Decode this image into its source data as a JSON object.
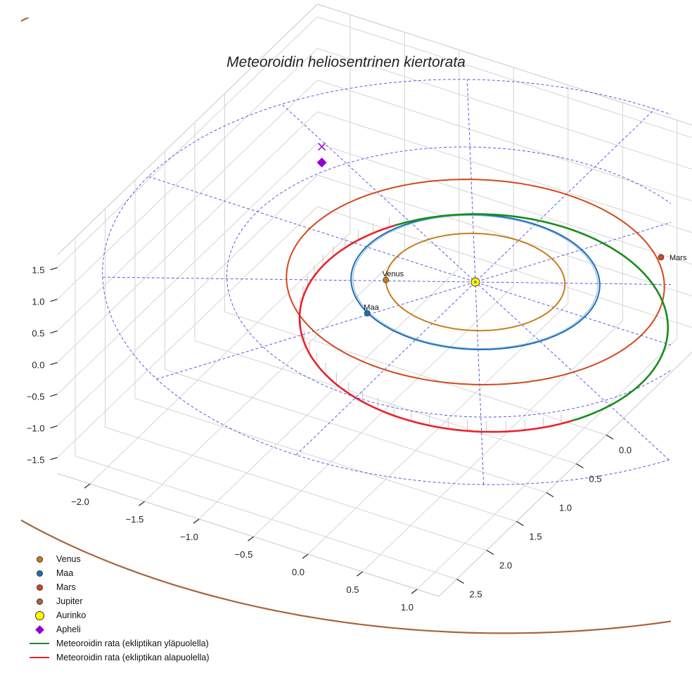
{
  "chart_data": {
    "type": "line",
    "title": "Meteoroidin heliosentrinen kiertorata",
    "xlabel": "",
    "ylabel": "",
    "zlabel": "",
    "x_ticks": [
      "−2.0",
      "−1.5",
      "−1.0",
      "−0.5",
      "0.0",
      "0.5",
      "1.0"
    ],
    "y_ticks": [
      "0.0",
      "0.5",
      "1.0",
      "1.5",
      "2.0",
      "2.5"
    ],
    "z_ticks": [
      "1.5",
      "1.0",
      "0.5",
      "0.0",
      "−0.5",
      "−1.0",
      "−1.5"
    ],
    "grid": true,
    "legend_position": "lower-left",
    "colors": {
      "venus": "#c97d1e",
      "earth": "#1f6fb5",
      "mars": "#d3481a",
      "jupiter": "#a8643c",
      "sun": "#ffff00",
      "aphelion": "#9400d3",
      "meteor_above": "#1a8c1a",
      "meteor_below": "#e8232a",
      "ecliptic_grid": "#4a4ae0"
    },
    "planets": [
      {
        "label": "Venus",
        "x": -0.63,
        "y": 0.35,
        "z": 0.0
      },
      {
        "label": "Maa",
        "x": -0.52,
        "y": 0.86,
        "z": 0.0
      },
      {
        "label": "Mars",
        "x": 1.1,
        "y": -1.1,
        "z": 0.0
      }
    ],
    "sun": {
      "x": 0.0,
      "y": 0.0,
      "z": 0.0
    },
    "aphelion": {
      "x": -1.93,
      "y": -0.95,
      "z": -0.05
    },
    "orbit_radii_au": {
      "venus": 0.72,
      "earth": 1.0,
      "mars": 1.52,
      "jupiter": 5.2
    },
    "series": [
      {
        "name": "Meteoroidin rata (ekliptikan yläpuolella)"
      },
      {
        "name": "Meteoroidin rata (ekliptikan alapuolella)"
      }
    ],
    "legend": [
      {
        "key": "venus",
        "label": "Venus",
        "marker": "dot"
      },
      {
        "key": "earth",
        "label": "Maa",
        "marker": "dot"
      },
      {
        "key": "mars",
        "label": "Mars",
        "marker": "dot"
      },
      {
        "key": "jupiter",
        "label": "Jupiter",
        "marker": "dot"
      },
      {
        "key": "sun",
        "label": "Aurinko",
        "marker": "big"
      },
      {
        "key": "aphelion",
        "label": "Apheli",
        "marker": "diamond"
      },
      {
        "key": "meteor_above",
        "label": "Meteoroidin rata (ekliptikan yläpuolella)",
        "marker": "line"
      },
      {
        "key": "meteor_below",
        "label": "Meteoroidin rata (ekliptikan alapuolella)",
        "marker": "line"
      }
    ]
  }
}
